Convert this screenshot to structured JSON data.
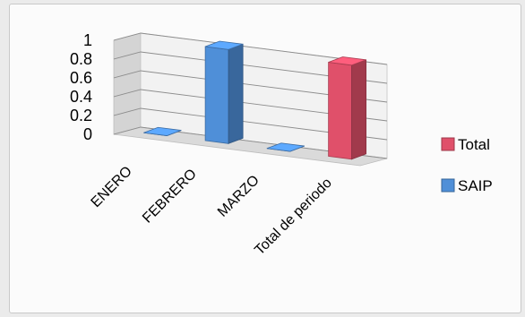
{
  "chart_data": {
    "type": "bar",
    "style": "3d-column",
    "categories": [
      "ENERO",
      "FEBRERO",
      "MARZO",
      "Total de periodo"
    ],
    "series": [
      {
        "name": "SAIP",
        "values": [
          0,
          1,
          0,
          null
        ],
        "color": "#4f8fd8"
      },
      {
        "name": "Total",
        "values": [
          null,
          null,
          null,
          1
        ],
        "color": "#e0506a"
      }
    ],
    "y_ticks": [
      "0",
      "0.2",
      "0.4",
      "0.6",
      "0.8",
      "1"
    ],
    "ylim": [
      0,
      1
    ],
    "grid": true,
    "legend_position": "right",
    "legend_order": [
      "Total",
      "SAIP"
    ],
    "title": "",
    "xlabel": "",
    "ylabel": ""
  }
}
